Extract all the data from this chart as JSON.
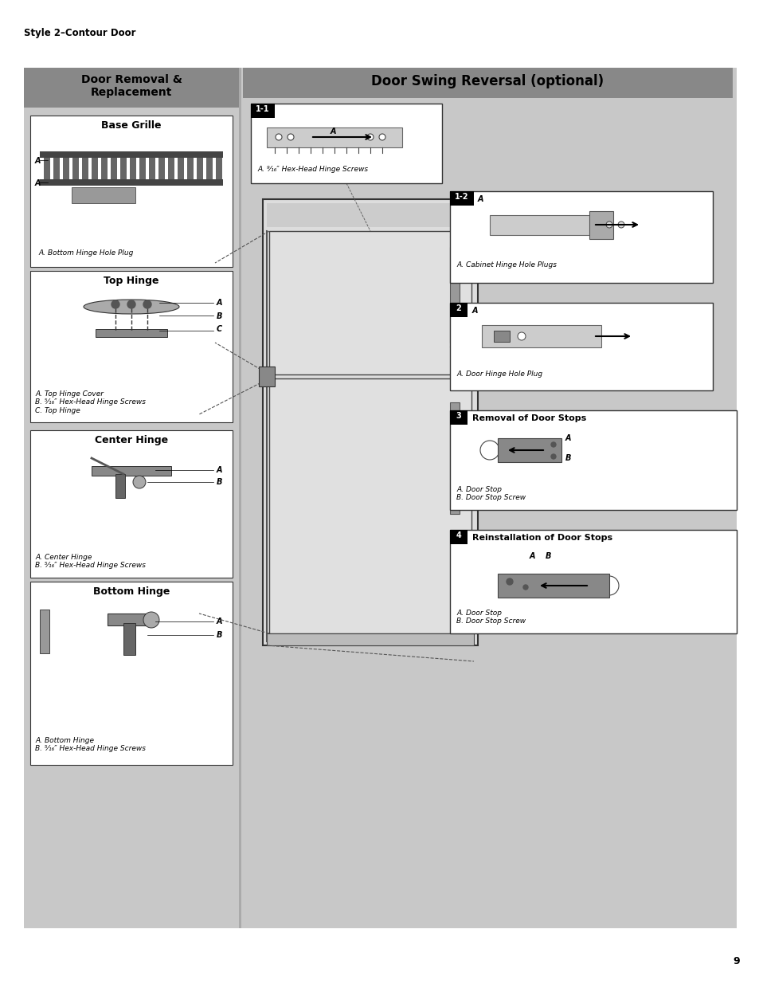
{
  "page_bg": "#ffffff",
  "content_bg": "#d0d0d0",
  "left_panel_bg": "#c8c8c8",
  "right_panel_bg": "#c8c8c8",
  "white_box_bg": "#ffffff",
  "header_left_text": "Door Removal &\nReplacement",
  "header_right_text": "Door Swing Reversal (optional)",
  "style_label": "Style 2–Contour Door",
  "page_number": "9",
  "left_sections": [
    {
      "title": "Base Grille",
      "caption": "A. Bottom Hinge Hole Plug"
    },
    {
      "title": "Top Hinge",
      "caption": "A. Top Hinge Cover\nB. ⁵⁄₁₆″ Hex-Head Hinge Screws\nC. Top Hinge"
    },
    {
      "title": "Center Hinge",
      "caption": "A. Center Hinge\nB. ⁵⁄₁₆″ Hex-Head Hinge Screws"
    },
    {
      "title": "Bottom Hinge",
      "caption": "A. Bottom Hinge\nB. ⁵⁄₁₆″ Hex-Head Hinge Screws"
    }
  ],
  "right_steps": [
    {
      "num": "1-1",
      "caption": "A. ⁹⁄₁₆″ Hex-Head Hinge Screws"
    },
    {
      "num": "1-2",
      "caption": "A. Cabinet Hinge Hole Plugs"
    },
    {
      "num": "2",
      "caption": "A. Door Hinge Hole Plug"
    },
    {
      "num": "3",
      "title": "Removal of Door Stops",
      "caption": "A. Door Stop\nB. Door Stop Screw"
    },
    {
      "num": "4",
      "title": "Reinstallation of Door Stops",
      "caption": "A. Door Stop\nB. Door Stop Screw"
    }
  ],
  "fig_width": 9.54,
  "fig_height": 12.35,
  "dpi": 100
}
